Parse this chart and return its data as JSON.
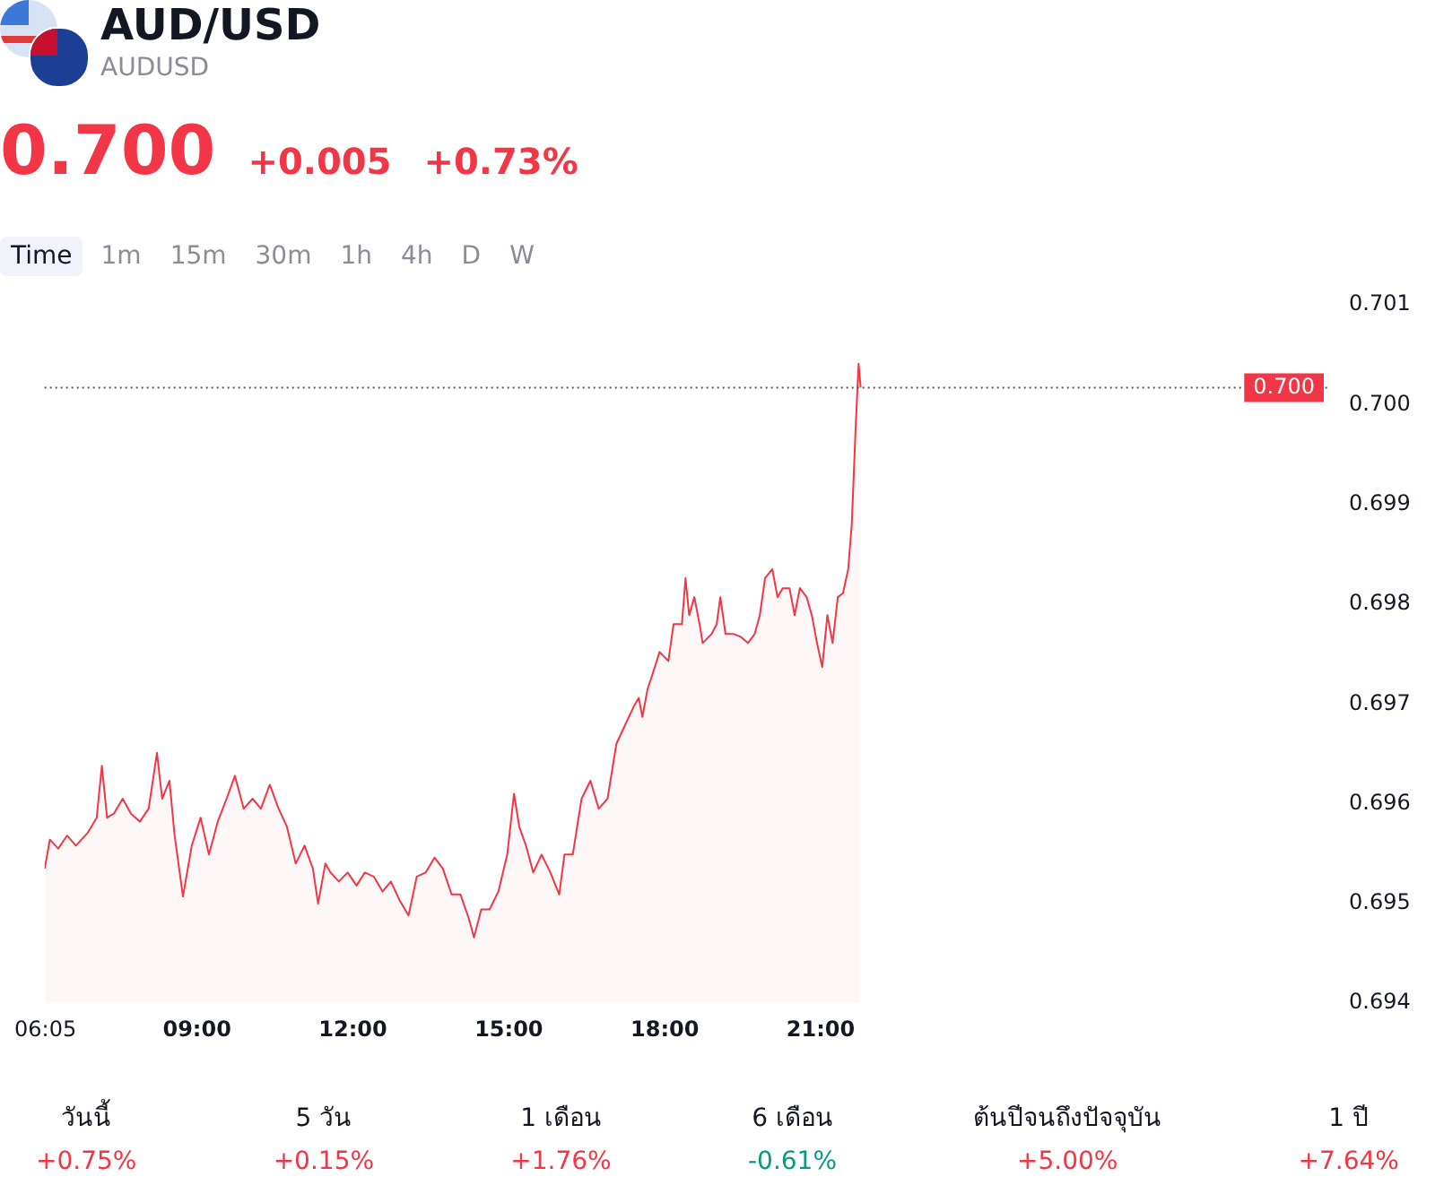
{
  "chart_data": {
    "type": "area",
    "title": "AUD/USD",
    "subtitle": "AUDUSD",
    "annotations": [
      "0.700",
      "+0.005",
      "+0.73%",
      "Time",
      "1m",
      "15m",
      "30m",
      "1h",
      "4h",
      "D",
      "W",
      "วันนี้",
      "+0.75%",
      "5 วัน",
      "+0.15%",
      "1 เดือน",
      "+1.76%",
      "6 เดือน",
      "-0.61%",
      "ต้นปีจนถึงปัจจุบัน",
      "+5.00%",
      "1 ปี",
      "+7.64%"
    ],
    "xlim": [
      6.067,
      30.75
    ],
    "xticks": [
      {
        "value": 6.083,
        "label": "06:05"
      },
      {
        "value": 9,
        "label": "09:00"
      },
      {
        "value": 12,
        "label": "12:00"
      },
      {
        "value": 15,
        "label": "15:00"
      },
      {
        "value": 18,
        "label": "18:00"
      },
      {
        "value": 21,
        "label": "21:00"
      }
    ],
    "ylim": [
      0.694,
      0.701
    ],
    "yticks": [
      0.694,
      0.695,
      0.696,
      0.697,
      0.698,
      0.699,
      {
        "value": 0.7,
        "label": "0.700"
      },
      0.701
    ],
    "grid": false,
    "legend": false,
    "marker": "none",
    "line_style": "solid",
    "ref_lines": [
      {
        "axis": "y",
        "value": 0.70017,
        "label": "0.700",
        "line_style": "dotted"
      }
    ],
    "series": [
      {
        "color": "#f23645",
        "x": [
          6.07,
          6.17,
          6.33,
          6.5,
          6.67,
          6.9,
          7.07,
          7.17,
          7.27,
          7.4,
          7.57,
          7.73,
          7.9,
          8.07,
          8.23,
          8.33,
          8.47,
          8.57,
          8.73,
          8.9,
          9.07,
          9.23,
          9.4,
          9.57,
          9.73,
          9.9,
          10.07,
          10.23,
          10.4,
          10.57,
          10.73,
          10.9,
          11.07,
          11.23,
          11.33,
          11.47,
          11.57,
          11.73,
          11.9,
          12.07,
          12.23,
          12.4,
          12.57,
          12.73,
          12.9,
          13.07,
          13.23,
          13.4,
          13.57,
          13.73,
          13.9,
          14.07,
          14.23,
          14.33,
          14.47,
          14.63,
          14.8,
          14.97,
          15.1,
          15.2,
          15.33,
          15.47,
          15.63,
          15.8,
          15.97,
          16.07,
          16.23,
          16.4,
          16.57,
          16.73,
          16.9,
          17.07,
          17.23,
          17.4,
          17.5,
          17.57,
          17.67,
          17.73,
          17.9,
          18.07,
          18.17,
          18.33,
          18.4,
          18.47,
          18.57,
          18.67,
          18.73,
          18.9,
          19.0,
          19.07,
          19.17,
          19.33,
          19.47,
          19.6,
          19.73,
          19.83,
          19.93,
          20.07,
          20.17,
          20.27,
          20.4,
          20.5,
          20.6,
          20.73,
          20.83,
          20.93,
          21.03,
          21.13,
          21.23,
          21.33,
          21.43,
          21.53,
          21.6,
          21.67,
          21.73,
          21.77
        ],
        "values": [
          0.69535,
          0.69564,
          0.69555,
          0.69568,
          0.69558,
          0.69571,
          0.69586,
          0.69638,
          0.69586,
          0.6959,
          0.69605,
          0.6959,
          0.69582,
          0.69595,
          0.69651,
          0.69605,
          0.69623,
          0.69568,
          0.69507,
          0.69558,
          0.69586,
          0.69549,
          0.69582,
          0.69605,
          0.69628,
          0.69595,
          0.69605,
          0.69595,
          0.69619,
          0.69595,
          0.69577,
          0.6954,
          0.69558,
          0.69535,
          0.695,
          0.6954,
          0.69531,
          0.69522,
          0.69531,
          0.69518,
          0.69531,
          0.69527,
          0.69512,
          0.69522,
          0.69503,
          0.69488,
          0.69527,
          0.69531,
          0.69546,
          0.69535,
          0.69509,
          0.69509,
          0.69485,
          0.69466,
          0.69494,
          0.69494,
          0.69512,
          0.69549,
          0.6961,
          0.69577,
          0.69558,
          0.69531,
          0.69549,
          0.69531,
          0.69509,
          0.69549,
          0.69549,
          0.69605,
          0.69623,
          0.69595,
          0.69605,
          0.6966,
          0.69678,
          0.69697,
          0.69706,
          0.69687,
          0.69715,
          0.69724,
          0.69752,
          0.69743,
          0.6978,
          0.6978,
          0.69826,
          0.69789,
          0.69807,
          0.6978,
          0.69761,
          0.6977,
          0.6978,
          0.69807,
          0.6977,
          0.6977,
          0.69767,
          0.69761,
          0.6977,
          0.69789,
          0.69826,
          0.69835,
          0.69807,
          0.69816,
          0.69816,
          0.69789,
          0.69816,
          0.69807,
          0.69789,
          0.69761,
          0.69737,
          0.69789,
          0.69761,
          0.69807,
          0.69811,
          0.69835,
          0.69881,
          0.69973,
          0.70041,
          0.70017
        ]
      }
    ]
  }
}
